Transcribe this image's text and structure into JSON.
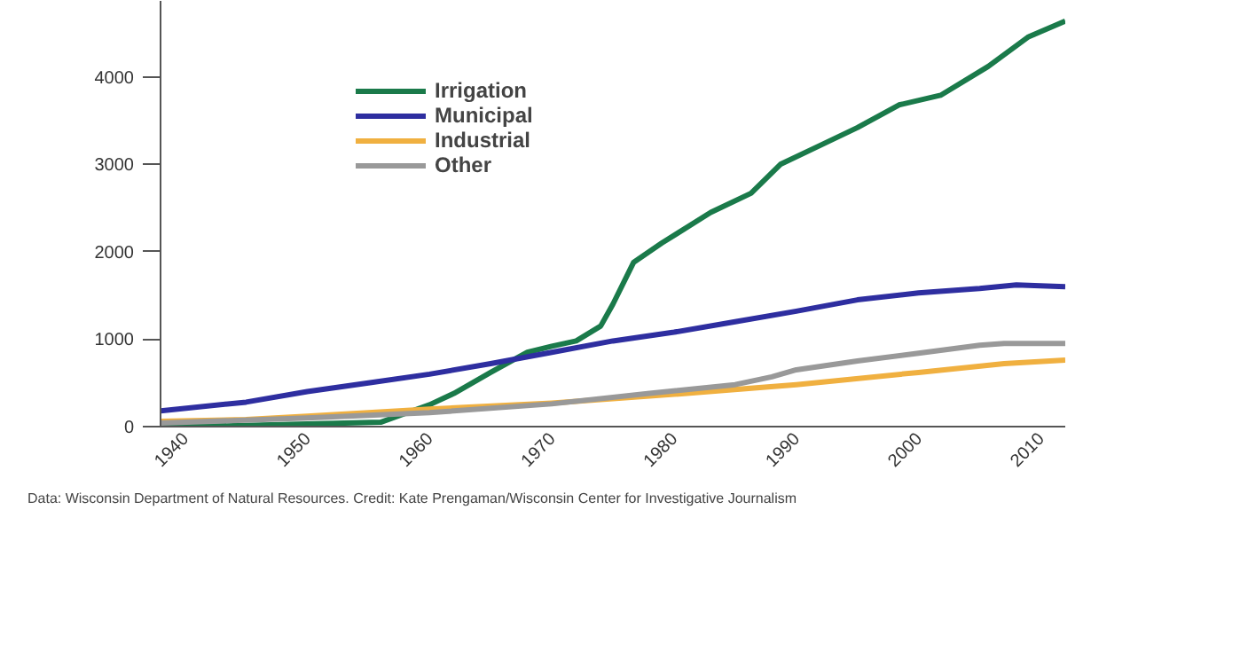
{
  "chart_data": {
    "type": "line",
    "xlim": [
      1938,
      2012
    ],
    "xticks": [
      1940,
      1950,
      1960,
      1970,
      1980,
      1990,
      2000,
      2010
    ],
    "ylim": [
      0,
      4870
    ],
    "yticks": [
      0,
      1000,
      2000,
      3000,
      4000
    ],
    "grid": false,
    "legend": "top left",
    "line_style": "solid",
    "marker": "none",
    "annotations": [
      "Data: Wisconsin Department of Natural Resources. Credit: Kate Prengaman/Wisconsin Center for Investigative Journalism"
    ],
    "series": [
      {
        "name": "Irrigation",
        "color": "#1a7a4a",
        "x": [
          1938,
          1944,
          1950,
          1956,
          1958,
          1960,
          1962,
          1965,
          1968,
          1970,
          1972,
          1974,
          1975,
          1976.7,
          1979,
          1983,
          1986.3,
          1988.7,
          1992,
          1995,
          1998.4,
          2001.8,
          2005.7,
          2009,
          2012
        ],
        "values": [
          0,
          10,
          30,
          50,
          150,
          250,
          380,
          620,
          850,
          920,
          980,
          1150,
          1400,
          1880,
          2100,
          2450,
          2670,
          3000,
          3220,
          3420,
          3680,
          3790,
          4120,
          4460,
          4640
        ]
      },
      {
        "name": "Municipal",
        "color": "#2e2ea0",
        "x": [
          1938,
          1945,
          1950,
          1955,
          1960,
          1965,
          1970,
          1975,
          1980,
          1985,
          1990,
          1995,
          2000,
          2005,
          2008,
          2012
        ],
        "values": [
          180,
          280,
          400,
          500,
          600,
          720,
          850,
          980,
          1080,
          1200,
          1320,
          1450,
          1530,
          1580,
          1620,
          1600
        ]
      },
      {
        "name": "Industrial",
        "color": "#f0b040",
        "x": [
          1938,
          1945,
          1950,
          1960,
          1970,
          1980,
          1990,
          2000,
          2007,
          2012
        ],
        "values": [
          60,
          80,
          120,
          200,
          270,
          370,
          480,
          620,
          720,
          760
        ]
      },
      {
        "name": "Other",
        "color": "#999999",
        "x": [
          1938,
          1950,
          1960,
          1970,
          1978,
          1985,
          1988,
          1990,
          1995,
          2000,
          2005,
          2007,
          2012
        ],
        "values": [
          40,
          100,
          160,
          260,
          380,
          480,
          570,
          650,
          750,
          840,
          930,
          950,
          950
        ]
      }
    ]
  }
}
